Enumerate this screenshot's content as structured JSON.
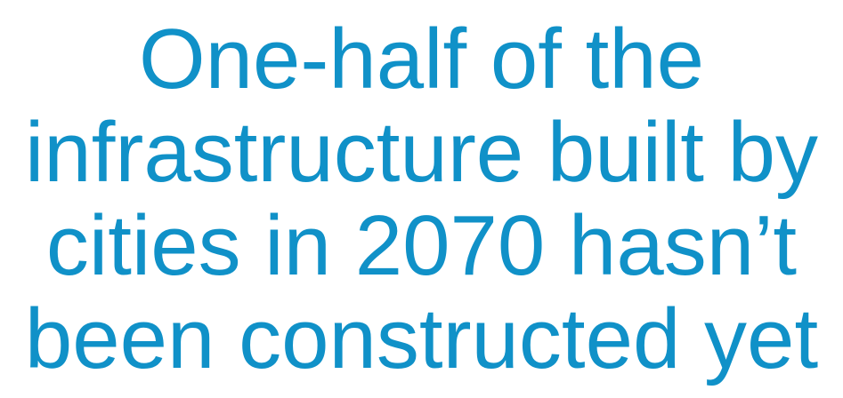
{
  "headline": {
    "lines": [
      "One-half of the",
      "infrastructure built by",
      "cities in 2070 hasn’t",
      "been constructed yet"
    ]
  }
}
